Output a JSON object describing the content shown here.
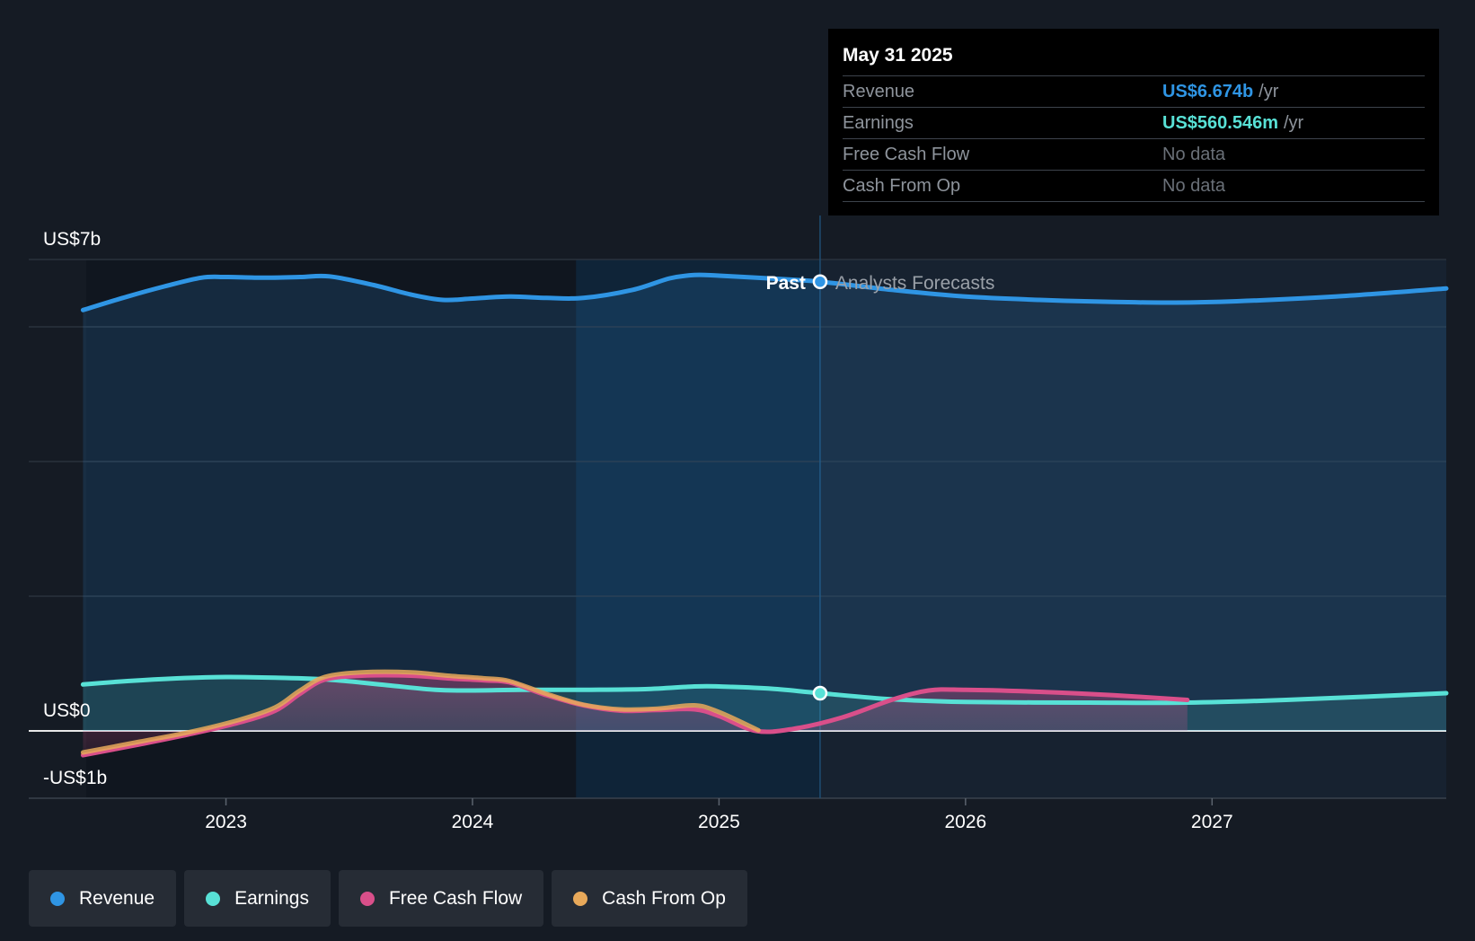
{
  "chart_data": {
    "type": "area",
    "y_axis_labels": {
      "top": "US$7b",
      "zero": "US$0",
      "bottom": "-US$1b"
    },
    "ylim": [
      -1,
      7
    ],
    "x_ticks": [
      {
        "label": "2023",
        "x": 2023.0
      },
      {
        "label": "2024",
        "x": 2024.0
      },
      {
        "label": "2025",
        "x": 2025.0
      },
      {
        "label": "2026",
        "x": 2026.0
      },
      {
        "label": "2027",
        "x": 2027.0
      }
    ],
    "xlim": [
      2022.2,
      2027.95
    ],
    "highlight_start": 2024.42,
    "divider_x": 2025.41,
    "past_label": "Past",
    "forecast_label": "Analysts Forecasts",
    "series": [
      {
        "name": "Revenue",
        "unit": "US$b",
        "color": "#2f95e4",
        "points": [
          [
            2022.42,
            6.25
          ],
          [
            2022.6,
            6.45
          ],
          [
            2022.75,
            6.6
          ],
          [
            2022.9,
            6.73
          ],
          [
            2023.0,
            6.74
          ],
          [
            2023.15,
            6.73
          ],
          [
            2023.3,
            6.74
          ],
          [
            2023.42,
            6.75
          ],
          [
            2023.6,
            6.62
          ],
          [
            2023.75,
            6.48
          ],
          [
            2023.88,
            6.4
          ],
          [
            2024.0,
            6.42
          ],
          [
            2024.15,
            6.45
          ],
          [
            2024.3,
            6.43
          ],
          [
            2024.45,
            6.43
          ],
          [
            2024.65,
            6.55
          ],
          [
            2024.8,
            6.72
          ],
          [
            2024.9,
            6.77
          ],
          [
            2025.0,
            6.76
          ],
          [
            2025.2,
            6.72
          ],
          [
            2025.41,
            6.67
          ],
          [
            2025.7,
            6.55
          ],
          [
            2026.0,
            6.45
          ],
          [
            2026.3,
            6.4
          ],
          [
            2026.6,
            6.37
          ],
          [
            2026.85,
            6.36
          ],
          [
            2027.1,
            6.38
          ],
          [
            2027.5,
            6.45
          ],
          [
            2027.95,
            6.57
          ]
        ]
      },
      {
        "name": "Earnings",
        "unit": "US$b",
        "color": "#58e1d6",
        "points": [
          [
            2022.42,
            0.69
          ],
          [
            2022.6,
            0.74
          ],
          [
            2022.8,
            0.78
          ],
          [
            2023.0,
            0.8
          ],
          [
            2023.2,
            0.79
          ],
          [
            2023.42,
            0.76
          ],
          [
            2023.65,
            0.68
          ],
          [
            2023.85,
            0.61
          ],
          [
            2024.0,
            0.6
          ],
          [
            2024.2,
            0.61
          ],
          [
            2024.45,
            0.61
          ],
          [
            2024.7,
            0.62
          ],
          [
            2024.9,
            0.66
          ],
          [
            2025.0,
            0.66
          ],
          [
            2025.2,
            0.63
          ],
          [
            2025.41,
            0.56
          ],
          [
            2025.7,
            0.47
          ],
          [
            2026.0,
            0.43
          ],
          [
            2026.5,
            0.42
          ],
          [
            2026.9,
            0.42
          ],
          [
            2027.3,
            0.46
          ],
          [
            2027.95,
            0.56
          ]
        ]
      },
      {
        "name": "Free Cash Flow",
        "unit": "US$b",
        "color": "#d94f8a",
        "points": [
          [
            2022.42,
            -0.36
          ],
          [
            2022.65,
            -0.2
          ],
          [
            2022.85,
            -0.05
          ],
          [
            2023.05,
            0.12
          ],
          [
            2023.2,
            0.3
          ],
          [
            2023.3,
            0.55
          ],
          [
            2023.4,
            0.76
          ],
          [
            2023.55,
            0.82
          ],
          [
            2023.75,
            0.82
          ],
          [
            2023.9,
            0.78
          ],
          [
            2024.05,
            0.75
          ],
          [
            2024.15,
            0.72
          ],
          [
            2024.3,
            0.53
          ],
          [
            2024.45,
            0.38
          ],
          [
            2024.6,
            0.3
          ],
          [
            2024.75,
            0.31
          ],
          [
            2024.9,
            0.32
          ],
          [
            2025.0,
            0.22
          ],
          [
            2025.15,
            0.0
          ],
          [
            2025.3,
            0.03
          ],
          [
            2025.5,
            0.2
          ],
          [
            2025.7,
            0.46
          ],
          [
            2025.85,
            0.6
          ],
          [
            2026.0,
            0.61
          ],
          [
            2026.3,
            0.58
          ],
          [
            2026.6,
            0.53
          ],
          [
            2026.9,
            0.46
          ]
        ]
      },
      {
        "name": "Cash From Op",
        "unit": "US$b",
        "color": "#e8a95a",
        "points": [
          [
            2022.42,
            -0.32
          ],
          [
            2022.65,
            -0.16
          ],
          [
            2022.85,
            -0.02
          ],
          [
            2023.05,
            0.16
          ],
          [
            2023.2,
            0.35
          ],
          [
            2023.3,
            0.6
          ],
          [
            2023.4,
            0.8
          ],
          [
            2023.55,
            0.87
          ],
          [
            2023.75,
            0.87
          ],
          [
            2023.9,
            0.82
          ],
          [
            2024.05,
            0.78
          ],
          [
            2024.15,
            0.74
          ],
          [
            2024.3,
            0.55
          ],
          [
            2024.45,
            0.39
          ],
          [
            2024.6,
            0.32
          ],
          [
            2024.75,
            0.33
          ],
          [
            2024.9,
            0.38
          ],
          [
            2025.0,
            0.28
          ],
          [
            2025.16,
            0.01
          ]
        ]
      }
    ]
  },
  "tooltip": {
    "date": "May 31 2025",
    "rows": [
      {
        "label": "Revenue",
        "value": "US$6.674b",
        "unit": "/yr",
        "color": "#2f95e4"
      },
      {
        "label": "Earnings",
        "value": "US$560.546m",
        "unit": "/yr",
        "color": "#58e1d6"
      },
      {
        "label": "Free Cash Flow",
        "value": "No data"
      },
      {
        "label": "Cash From Op",
        "value": "No data"
      }
    ]
  },
  "legend": [
    {
      "label": "Revenue",
      "color": "#2f95e4"
    },
    {
      "label": "Earnings",
      "color": "#58e1d6"
    },
    {
      "label": "Free Cash Flow",
      "color": "#d94f8a"
    },
    {
      "label": "Cash From Op",
      "color": "#e8a95a"
    }
  ]
}
